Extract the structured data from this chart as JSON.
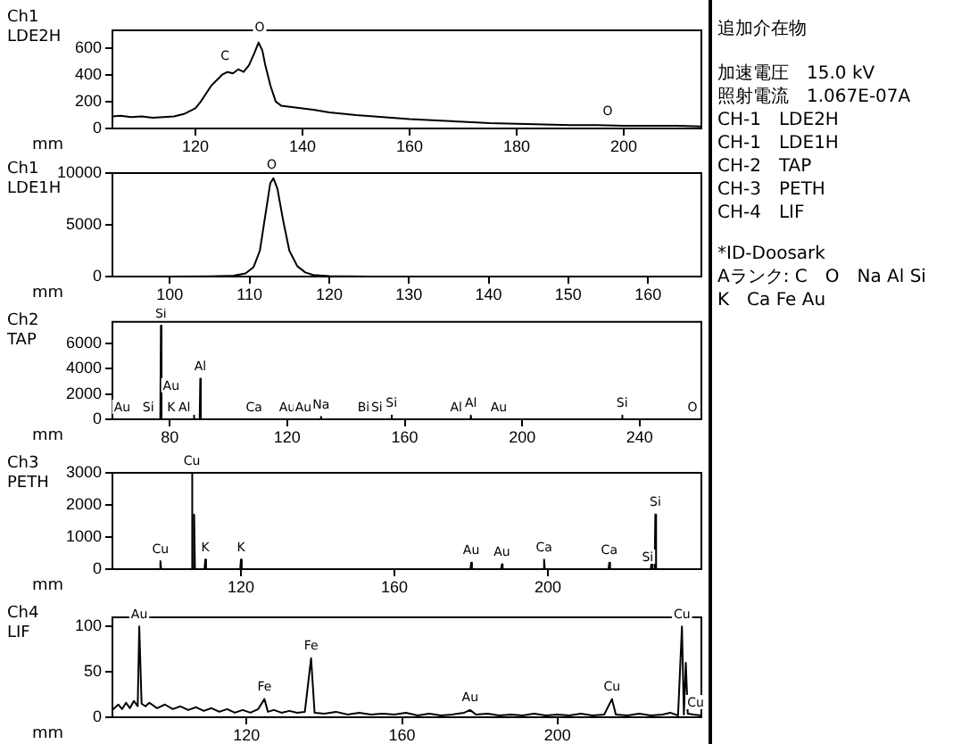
{
  "chart_data": [
    {
      "type": "line",
      "title": "Ch1 LDE2H",
      "xlabel": "mm",
      "color": "#000000",
      "marker": "none",
      "grid": false,
      "x": [
        104.5,
        106,
        108,
        110,
        112,
        114,
        116,
        118,
        120,
        121,
        122,
        123,
        124,
        125,
        126,
        127,
        128,
        129,
        130,
        131,
        131.8,
        132.5,
        133,
        134,
        135,
        136,
        138,
        140,
        142,
        145,
        150,
        155,
        160,
        165,
        170,
        175,
        180,
        185,
        190,
        195,
        200,
        205,
        210,
        214.5
      ],
      "values": [
        90,
        95,
        85,
        90,
        80,
        85,
        90,
        110,
        150,
        200,
        260,
        320,
        360,
        400,
        420,
        410,
        440,
        420,
        470,
        560,
        640,
        580,
        480,
        320,
        200,
        170,
        160,
        150,
        140,
        120,
        100,
        85,
        70,
        60,
        50,
        40,
        35,
        30,
        25,
        25,
        20,
        20,
        20,
        15
      ],
      "xlim": [
        104.5,
        214.5
      ],
      "xticks": [
        120,
        140,
        160,
        180,
        200
      ],
      "ylim": [
        0,
        730
      ],
      "yticks": [
        0,
        200,
        400,
        600
      ],
      "annotations": [
        {
          "text": "C",
          "x": 125.5,
          "y": 450
        },
        {
          "text": "O",
          "x": 132,
          "y": 660
        },
        {
          "text": "O",
          "x": 197,
          "y": 40
        }
      ]
    },
    {
      "type": "line",
      "title": "Ch1 LDE1H",
      "xlabel": "mm",
      "color": "#000000",
      "marker": "none",
      "grid": false,
      "x": [
        92.8,
        100,
        105,
        108,
        109.5,
        110.5,
        111.3,
        112,
        112.6,
        113,
        113.5,
        114.2,
        115,
        116,
        117,
        118,
        120,
        125,
        140,
        166.7
      ],
      "values": [
        0,
        0,
        20,
        80,
        300,
        900,
        2500,
        6000,
        9000,
        9500,
        8500,
        5500,
        2500,
        1000,
        400,
        150,
        50,
        10,
        0,
        0
      ],
      "xlim": [
        92.8,
        166.7
      ],
      "xticks": [
        100,
        110,
        120,
        130,
        140,
        150,
        160
      ],
      "ylim": [
        0,
        10000
      ],
      "yticks": [
        0,
        5000,
        10000
      ],
      "annotations": [
        {
          "text": "O",
          "x": 112.8,
          "y": 9600
        }
      ]
    },
    {
      "type": "line",
      "title": "Ch2 TAP",
      "xlabel": "mm",
      "color": "#000000",
      "marker": "none",
      "grid": false,
      "x": [
        60.5,
        76.8,
        77,
        77.2,
        88,
        88.2,
        88.4,
        90.2,
        90.4,
        90.6,
        131.3,
        131.5,
        131.7,
        155.3,
        155.5,
        155.7,
        182.3,
        182.5,
        182.7,
        233.8,
        234,
        234.2,
        261
      ],
      "values": [
        0,
        0,
        7400,
        0,
        0,
        300,
        0,
        0,
        3200,
        0,
        0,
        200,
        0,
        0,
        300,
        0,
        0,
        300,
        0,
        0,
        300,
        0,
        0
      ],
      "xlim": [
        60.5,
        261
      ],
      "xticks": [
        80,
        120,
        160,
        200,
        240
      ],
      "ylim": [
        0,
        7700
      ],
      "yticks": [
        0,
        2000,
        4000,
        6000
      ],
      "annotations": [
        {
          "text": "Si",
          "x": 77,
          "y": 7400
        },
        {
          "text": "Au",
          "x": 63.8,
          "y": 0
        },
        {
          "text": "Si",
          "x": 72.7,
          "y": 0
        },
        {
          "text": "Au",
          "x": 80.5,
          "y": 1700
        },
        {
          "text": "K",
          "x": 80.5,
          "y": 0
        },
        {
          "text": "Al",
          "x": 85,
          "y": 0
        },
        {
          "text": "Al",
          "x": 90.4,
          "y": 3200
        },
        {
          "text": "Ca",
          "x": 108.7,
          "y": 0
        },
        {
          "text": "Au",
          "x": 120,
          "y": 0
        },
        {
          "text": "Au",
          "x": 125.5,
          "y": 0
        },
        {
          "text": "Na",
          "x": 131.5,
          "y": 200
        },
        {
          "text": "Bi",
          "x": 146,
          "y": 0
        },
        {
          "text": "Si",
          "x": 150.5,
          "y": 0
        },
        {
          "text": "Si",
          "x": 155.5,
          "y": 300
        },
        {
          "text": "Al",
          "x": 182.5,
          "y": 300
        },
        {
          "text": "Al",
          "x": 177.5,
          "y": 0
        },
        {
          "text": "Au",
          "x": 192,
          "y": 0
        },
        {
          "text": "Si",
          "x": 234,
          "y": 300
        },
        {
          "text": "O",
          "x": 258,
          "y": 0
        }
      ]
    },
    {
      "type": "line",
      "title": "Ch3 PETH",
      "xlabel": "mm",
      "color": "#000000",
      "marker": "none",
      "grid": false,
      "x": [
        86.5,
        98.8,
        99,
        99.2,
        107,
        107.2,
        107.4,
        107.6,
        107.8,
        108,
        110.5,
        110.7,
        110.9,
        119.8,
        120,
        120.2,
        179.8,
        180,
        180.2,
        187.8,
        188,
        188.2,
        198.8,
        199,
        199.2,
        215.8,
        216,
        216.2,
        226.8,
        227,
        227.2,
        227.8,
        228,
        228.2,
        240
      ],
      "values": [
        0,
        0,
        250,
        0,
        0,
        3000,
        0,
        0,
        1700,
        0,
        0,
        300,
        0,
        0,
        300,
        0,
        0,
        200,
        0,
        0,
        150,
        0,
        0,
        300,
        0,
        0,
        200,
        0,
        0,
        200,
        0,
        0,
        1700,
        0,
        0
      ],
      "xlim": [
        86.5,
        240
      ],
      "xticks": [
        120,
        160,
        200
      ],
      "ylim": [
        0,
        3000
      ],
      "yticks": [
        0,
        1000,
        2000,
        3000
      ],
      "annotations": [
        {
          "text": "Cu",
          "x": 107.2,
          "y": 3000
        },
        {
          "text": "Cu",
          "x": 99,
          "y": 250
        },
        {
          "text": "K",
          "x": 110.7,
          "y": 300
        },
        {
          "text": "K",
          "x": 120,
          "y": 300
        },
        {
          "text": "Au",
          "x": 180,
          "y": 200
        },
        {
          "text": "Au",
          "x": 188,
          "y": 150
        },
        {
          "text": "Ca",
          "x": 199,
          "y": 300
        },
        {
          "text": "Ca",
          "x": 216,
          "y": 200
        },
        {
          "text": "Si",
          "x": 226,
          "y": 0
        },
        {
          "text": "Si",
          "x": 228,
          "y": 1700
        }
      ]
    },
    {
      "type": "line",
      "title": "Ch4 LIF",
      "xlabel": "mm",
      "color": "#000000",
      "marker": "none",
      "grid": false,
      "x": [
        85.5,
        87,
        88,
        89,
        90,
        91,
        92,
        92.4,
        93,
        94,
        95,
        97,
        99,
        101,
        103,
        105,
        107,
        109,
        111,
        113,
        115,
        117,
        119,
        121,
        123,
        124.6,
        125.5,
        127,
        129,
        131,
        133,
        135,
        136.6,
        137.5,
        140,
        143,
        146,
        149,
        152,
        155,
        158,
        161,
        164,
        167,
        170,
        173,
        176,
        177.5,
        179,
        182,
        185,
        188,
        191,
        194,
        197,
        200,
        203,
        206,
        209,
        212,
        214,
        215,
        218,
        221,
        224,
        227,
        229,
        231,
        232,
        232.5,
        233,
        233.5,
        235,
        237
      ],
      "values": [
        8,
        14,
        9,
        16,
        10,
        18,
        12,
        100,
        15,
        12,
        16,
        10,
        14,
        9,
        12,
        8,
        11,
        7,
        10,
        6,
        9,
        5,
        8,
        5,
        9,
        20,
        6,
        8,
        5,
        7,
        5,
        6,
        65,
        5,
        4,
        6,
        3,
        5,
        3,
        4,
        3,
        5,
        2,
        4,
        2,
        3,
        5,
        8,
        3,
        4,
        2,
        3,
        2,
        4,
        2,
        3,
        2,
        4,
        2,
        3,
        20,
        3,
        2,
        4,
        2,
        3,
        5,
        2,
        100,
        3,
        60,
        4,
        3,
        2
      ],
      "xlim": [
        85.5,
        237
      ],
      "xticks": [
        120,
        160,
        200
      ],
      "ylim": [
        0,
        110
      ],
      "yticks": [
        0,
        50,
        100
      ],
      "annotations": [
        {
          "text": "Au",
          "x": 92.4,
          "y": 100
        },
        {
          "text": "Fe",
          "x": 136.6,
          "y": 65
        },
        {
          "text": "Fe",
          "x": 124.6,
          "y": 20
        },
        {
          "text": "Au",
          "x": 177.5,
          "y": 8
        },
        {
          "text": "Cu",
          "x": 214,
          "y": 20
        },
        {
          "text": "Cu",
          "x": 232,
          "y": 100
        },
        {
          "text": "Cu",
          "x": 235.5,
          "y": 3
        }
      ]
    },
    {
      "type": "other",
      "title": "追加介在物",
      "annotations": [
        "加速電圧　15.0 kV",
        "照射電流　1.067E-07A",
        "CH-1　LDE2H",
        "CH-1　LDE1H",
        "CH-2　TAP",
        "CH-3　PETH",
        "CH-4　LIF",
        "*ID-Doosark",
        "Aランク: C　O　Na Al Si",
        "K　Ca Fe Au"
      ]
    }
  ]
}
